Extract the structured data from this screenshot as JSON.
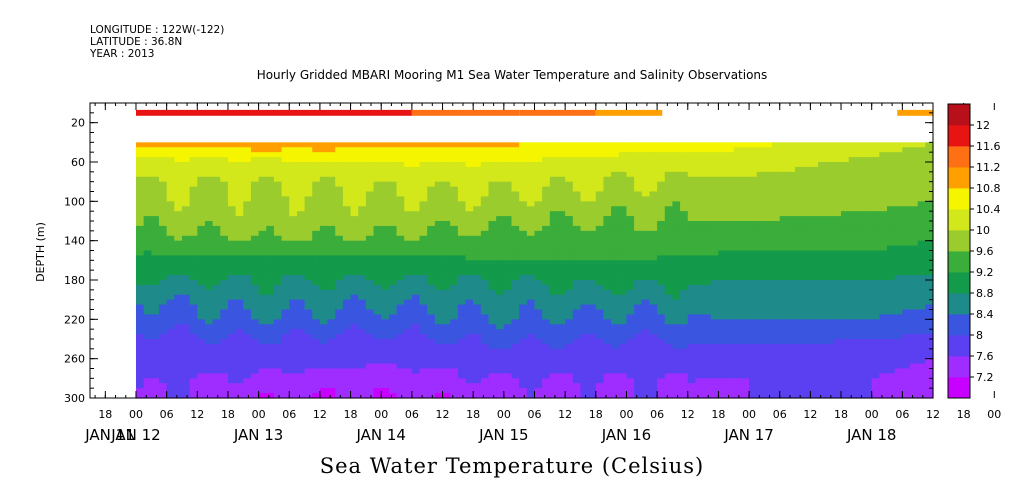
{
  "header": {
    "longitude": "LONGITUDE : 122W(-122)",
    "latitude": "LATITUDE : 36.8N",
    "year": "YEAR : 2013"
  },
  "title": "Hourly Gridded MBARI Mooring M1 Sea Water Temperature and Salinity Observations",
  "quantity_label": "Sea Water Temperature (Celsius)",
  "chart_data": {
    "type": "heatmap",
    "title": "Hourly Gridded MBARI Mooring M1 Sea Water Temperature and Salinity Observations",
    "ylabel": "DEPTH (m)",
    "xlabel": "",
    "value_label": "Sea Water Temperature (Celsius)",
    "x_range_hours": [
      -9,
      156
    ],
    "x_range_dates": [
      "2013-01-11 15:00",
      "2013-01-18 12:00"
    ],
    "y_range": [
      300,
      0
    ],
    "y_ticks": [
      20,
      60,
      100,
      140,
      180,
      220,
      260,
      300
    ],
    "hour_ticks": [
      18,
      0,
      6,
      12,
      18,
      0,
      6,
      12,
      18,
      0,
      6,
      12,
      18,
      0,
      6,
      12,
      18,
      0,
      6,
      12,
      18,
      0,
      6,
      12,
      18,
      0,
      6,
      12,
      18,
      0,
      6,
      12
    ],
    "hour_tick_start": -6,
    "hour_tick_step": 6,
    "day_labels": [
      "JAN 11",
      "JAN 12",
      "JAN 13",
      "JAN 14",
      "JAN 15",
      "JAN 16",
      "JAN 17",
      "JAN 18"
    ],
    "colorbar_levels": [
      7.2,
      7.6,
      8,
      8.4,
      8.8,
      9.2,
      9.6,
      10,
      10.4,
      10.8,
      11.2,
      11.6,
      12
    ],
    "colors": [
      "#c800ff",
      "#9f2dff",
      "#7a30ff",
      "#5a40f0",
      "#3a56e0",
      "#2a72c0",
      "#1e8a8a",
      "#139a4a",
      "#3aad3a",
      "#6cbe35",
      "#9bcc2e",
      "#d2e81a",
      "#f5f500",
      "#ffd000",
      "#ffa000",
      "#ff7014",
      "#ff3c14",
      "#e81414",
      "#b8101a"
    ],
    "data_start_hour": 0,
    "data_end_hour": 156,
    "surface_depth_m": 10,
    "surface_series": [
      {
        "from_hour": 0,
        "to_hour": 54,
        "temp": 11.9
      },
      {
        "from_hour": 54,
        "to_hour": 75,
        "temp": 11.5
      },
      {
        "from_hour": 75,
        "to_hour": 90,
        "temp": 11.3
      },
      {
        "from_hour": 90,
        "to_hour": 103,
        "temp": 11.0
      },
      {
        "from_hour": 149,
        "to_hour": 156,
        "temp": 10.9
      }
    ],
    "profile_depths_m": [
      40,
      60,
      80,
      100,
      120,
      140,
      160,
      180,
      200,
      220,
      240,
      260,
      280,
      300
    ],
    "profiles": [
      {
        "hour": 0,
        "temps": [
          10.9,
          10.3,
          10.0,
          9.9,
          9.7,
          9.4,
          9.1,
          8.8,
          8.4,
          8.1,
          7.9,
          7.8,
          7.7,
          7.6
        ]
      },
      {
        "hour": 24,
        "temps": [
          11.1,
          10.3,
          10.0,
          9.9,
          9.8,
          9.6,
          9.1,
          8.8,
          8.6,
          8.4,
          8.0,
          7.8,
          7.5,
          7.3
        ]
      },
      {
        "hour": 48,
        "temps": [
          11.0,
          10.4,
          10.1,
          9.9,
          9.8,
          9.5,
          9.1,
          8.8,
          8.5,
          8.2,
          7.9,
          7.7,
          7.4,
          7.2
        ]
      },
      {
        "hour": 72,
        "temps": [
          10.9,
          10.4,
          10.1,
          9.9,
          9.7,
          9.4,
          9.2,
          8.8,
          8.6,
          8.4,
          8.1,
          7.8,
          7.6,
          7.4
        ]
      },
      {
        "hour": 96,
        "temps": [
          10.7,
          10.2,
          10.0,
          9.8,
          9.6,
          9.4,
          9.2,
          8.9,
          8.6,
          8.3,
          8.0,
          7.8,
          7.6,
          7.5
        ]
      },
      {
        "hour": 120,
        "temps": [
          10.5,
          10.2,
          9.9,
          9.8,
          9.6,
          9.3,
          9.1,
          8.8,
          8.6,
          8.4,
          8.1,
          7.8,
          7.6,
          7.6
        ]
      },
      {
        "hour": 144,
        "temps": [
          10.2,
          9.9,
          9.8,
          9.7,
          9.5,
          9.3,
          9.1,
          8.8,
          8.6,
          8.4,
          8.0,
          7.8,
          7.6,
          7.6
        ]
      },
      {
        "hour": 156,
        "temps": [
          10.0,
          9.8,
          9.7,
          9.6,
          9.4,
          9.2,
          9.0,
          8.7,
          8.5,
          8.2,
          7.9,
          7.6,
          7.4,
          7.3
        ]
      }
    ]
  }
}
